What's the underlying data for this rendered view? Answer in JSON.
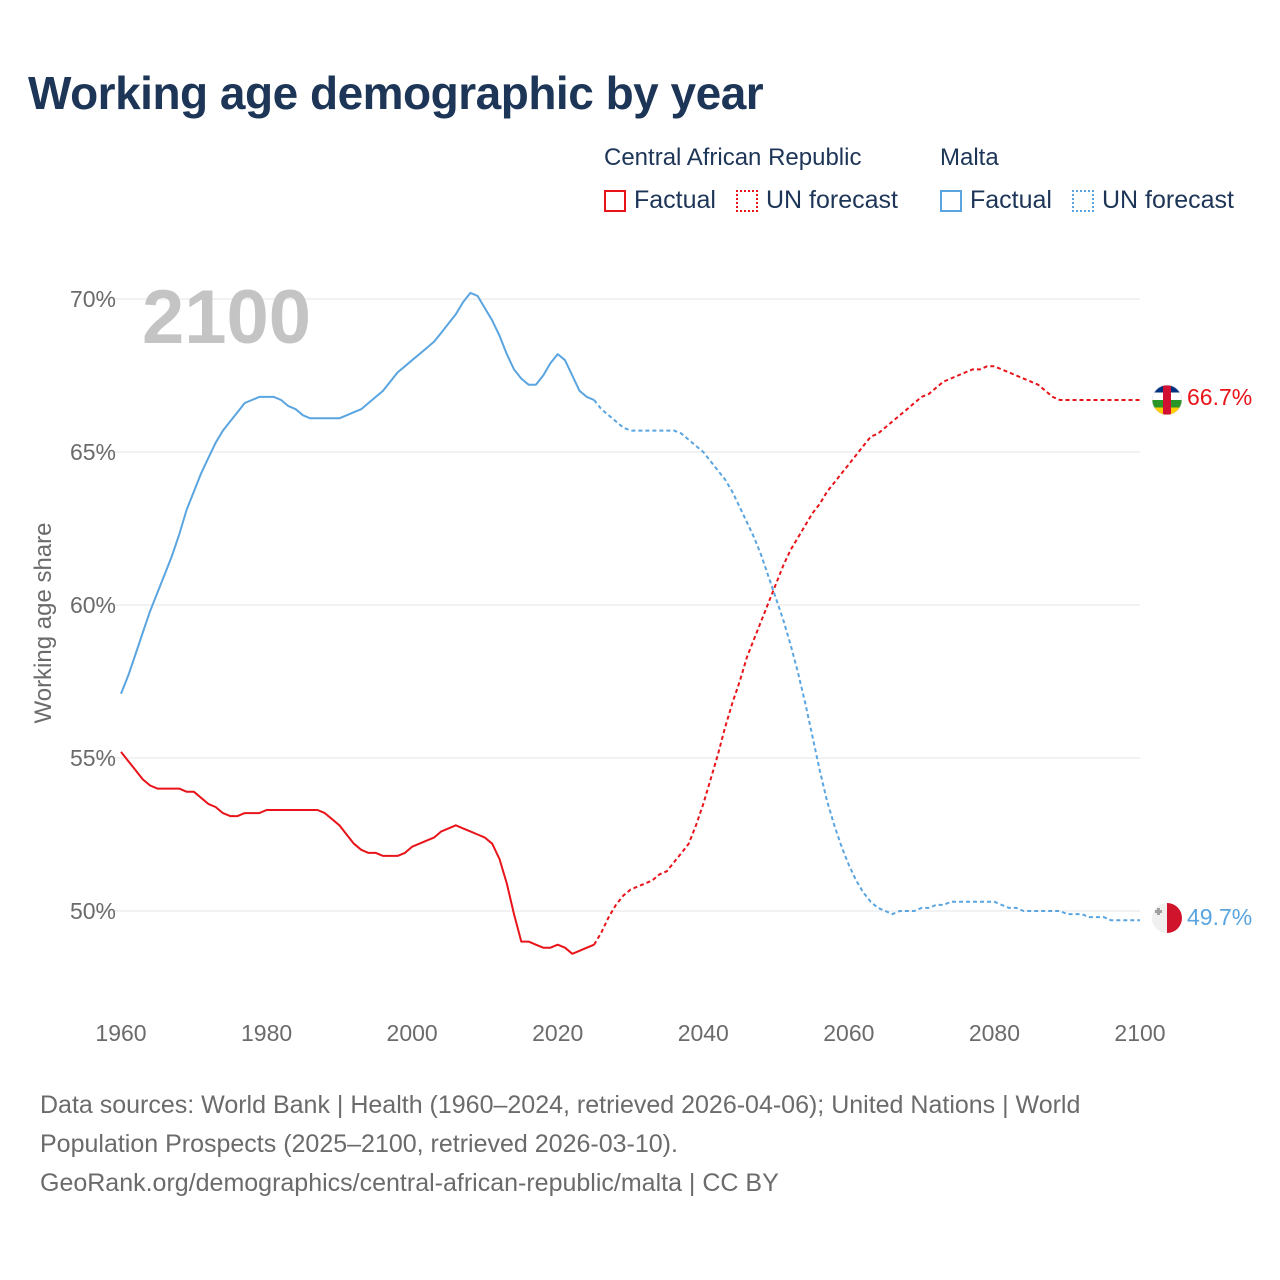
{
  "title": "Working age demographic by year",
  "year_label": "2100",
  "legend": [
    {
      "group": "Central African Republic",
      "factual": "Factual",
      "forecast": "UN forecast",
      "color": "#e8141a"
    },
    {
      "group": "Malta",
      "factual": "Factual",
      "forecast": "UN forecast",
      "color": "#5aa5e0"
    }
  ],
  "chart_data": {
    "type": "line",
    "title": "Working age demographic by year",
    "xlabel": "",
    "ylabel": "Working age share",
    "xlim": [
      1960,
      2100
    ],
    "ylim": [
      47,
      71
    ],
    "x_ticks": [
      "1960",
      "1980",
      "2000",
      "2020",
      "2040",
      "2060",
      "2080",
      "2100"
    ],
    "y_ticks": [
      "50%",
      "55%",
      "60%",
      "65%",
      "70%"
    ],
    "series": [
      {
        "name": "Central African Republic",
        "color": "#e8141a",
        "end_label": "66.7%",
        "factual": {
          "x": [
            1960,
            1961,
            1962,
            1963,
            1964,
            1965,
            1966,
            1967,
            1968,
            1969,
            1970,
            1971,
            1972,
            1973,
            1974,
            1975,
            1976,
            1977,
            1978,
            1979,
            1980,
            1981,
            1982,
            1983,
            1984,
            1985,
            1986,
            1987,
            1988,
            1989,
            1990,
            1991,
            1992,
            1993,
            1994,
            1995,
            1996,
            1997,
            1998,
            1999,
            2000,
            2001,
            2002,
            2003,
            2004,
            2005,
            2006,
            2007,
            2008,
            2009,
            2010,
            2011,
            2012,
            2013,
            2014,
            2015,
            2016,
            2017,
            2018,
            2019,
            2020,
            2021,
            2022,
            2023,
            2024,
            2025
          ],
          "y": [
            55.2,
            54.9,
            54.6,
            54.3,
            54.1,
            54.0,
            54.0,
            54.0,
            54.0,
            53.9,
            53.9,
            53.7,
            53.5,
            53.4,
            53.2,
            53.1,
            53.1,
            53.2,
            53.2,
            53.2,
            53.3,
            53.3,
            53.3,
            53.3,
            53.3,
            53.3,
            53.3,
            53.3,
            53.2,
            53.0,
            52.8,
            52.5,
            52.2,
            52.0,
            51.9,
            51.9,
            51.8,
            51.8,
            51.8,
            51.9,
            52.1,
            52.2,
            52.3,
            52.4,
            52.6,
            52.7,
            52.8,
            52.7,
            52.6,
            52.5,
            52.4,
            52.2,
            51.7,
            50.9,
            49.9,
            49.0,
            49.0,
            48.9,
            48.8,
            48.8,
            48.9,
            48.8,
            48.6,
            48.7,
            48.8,
            48.9
          ]
        },
        "forecast": {
          "x": [
            2025,
            2026,
            2027,
            2028,
            2029,
            2030,
            2031,
            2032,
            2033,
            2034,
            2035,
            2036,
            2037,
            2038,
            2039,
            2040,
            2041,
            2042,
            2043,
            2044,
            2045,
            2046,
            2047,
            2048,
            2049,
            2050,
            2051,
            2052,
            2053,
            2054,
            2055,
            2056,
            2057,
            2058,
            2059,
            2060,
            2061,
            2062,
            2063,
            2064,
            2065,
            2066,
            2067,
            2068,
            2069,
            2070,
            2071,
            2072,
            2073,
            2074,
            2075,
            2076,
            2077,
            2078,
            2079,
            2080,
            2081,
            2082,
            2083,
            2084,
            2085,
            2086,
            2087,
            2088,
            2089,
            2090,
            2091,
            2092,
            2093,
            2094,
            2095,
            2096,
            2097,
            2098,
            2099,
            2100
          ],
          "y": [
            48.9,
            49.3,
            49.8,
            50.2,
            50.5,
            50.7,
            50.8,
            50.9,
            51.0,
            51.2,
            51.3,
            51.6,
            51.9,
            52.2,
            52.8,
            53.5,
            54.3,
            55.1,
            56.0,
            56.8,
            57.5,
            58.3,
            58.9,
            59.5,
            60.1,
            60.7,
            61.3,
            61.8,
            62.2,
            62.6,
            63.0,
            63.3,
            63.7,
            64.0,
            64.3,
            64.6,
            64.9,
            65.2,
            65.5,
            65.6,
            65.8,
            66.0,
            66.2,
            66.4,
            66.6,
            66.8,
            66.9,
            67.1,
            67.3,
            67.4,
            67.5,
            67.6,
            67.7,
            67.7,
            67.8,
            67.8,
            67.7,
            67.6,
            67.5,
            67.4,
            67.3,
            67.2,
            67.0,
            66.8,
            66.7,
            66.7,
            66.7,
            66.7,
            66.7,
            66.7,
            66.7,
            66.7,
            66.7,
            66.7,
            66.7,
            66.7
          ]
        }
      },
      {
        "name": "Malta",
        "color": "#5aa5e0",
        "end_label": "49.7%",
        "factual": {
          "x": [
            1960,
            1961,
            1962,
            1963,
            1964,
            1965,
            1966,
            1967,
            1968,
            1969,
            1970,
            1971,
            1972,
            1973,
            1974,
            1975,
            1976,
            1977,
            1978,
            1979,
            1980,
            1981,
            1982,
            1983,
            1984,
            1985,
            1986,
            1987,
            1988,
            1989,
            1990,
            1991,
            1992,
            1993,
            1994,
            1995,
            1996,
            1997,
            1998,
            1999,
            2000,
            2001,
            2002,
            2003,
            2004,
            2005,
            2006,
            2007,
            2008,
            2009,
            2010,
            2011,
            2012,
            2013,
            2014,
            2015,
            2016,
            2017,
            2018,
            2019,
            2020,
            2021,
            2022,
            2023,
            2024,
            2025
          ],
          "y": [
            57.1,
            57.7,
            58.4,
            59.1,
            59.8,
            60.4,
            61.0,
            61.6,
            62.3,
            63.1,
            63.7,
            64.3,
            64.8,
            65.3,
            65.7,
            66.0,
            66.3,
            66.6,
            66.7,
            66.8,
            66.8,
            66.8,
            66.7,
            66.5,
            66.4,
            66.2,
            66.1,
            66.1,
            66.1,
            66.1,
            66.1,
            66.2,
            66.3,
            66.4,
            66.6,
            66.8,
            67.0,
            67.3,
            67.6,
            67.8,
            68.0,
            68.2,
            68.4,
            68.6,
            68.9,
            69.2,
            69.5,
            69.9,
            70.2,
            70.1,
            69.7,
            69.3,
            68.8,
            68.2,
            67.7,
            67.4,
            67.2,
            67.2,
            67.5,
            67.9,
            68.2,
            68.0,
            67.5,
            67.0,
            66.8,
            66.7
          ]
        },
        "forecast": {
          "x": [
            2025,
            2026,
            2027,
            2028,
            2029,
            2030,
            2031,
            2032,
            2033,
            2034,
            2035,
            2036,
            2037,
            2038,
            2039,
            2040,
            2041,
            2042,
            2043,
            2044,
            2045,
            2046,
            2047,
            2048,
            2049,
            2050,
            2051,
            2052,
            2053,
            2054,
            2055,
            2056,
            2057,
            2058,
            2059,
            2060,
            2061,
            2062,
            2063,
            2064,
            2065,
            2066,
            2067,
            2068,
            2069,
            2070,
            2071,
            2072,
            2073,
            2074,
            2075,
            2076,
            2077,
            2078,
            2079,
            2080,
            2081,
            2082,
            2083,
            2084,
            2085,
            2086,
            2087,
            2088,
            2089,
            2090,
            2091,
            2092,
            2093,
            2094,
            2095,
            2096,
            2097,
            2098,
            2099,
            2100
          ],
          "y": [
            66.7,
            66.4,
            66.2,
            66.0,
            65.8,
            65.7,
            65.7,
            65.7,
            65.7,
            65.7,
            65.7,
            65.7,
            65.6,
            65.4,
            65.2,
            65.0,
            64.7,
            64.4,
            64.1,
            63.7,
            63.2,
            62.7,
            62.2,
            61.6,
            60.9,
            60.2,
            59.5,
            58.7,
            57.8,
            56.8,
            55.7,
            54.6,
            53.6,
            52.8,
            52.1,
            51.5,
            51.0,
            50.6,
            50.3,
            50.1,
            50.0,
            49.9,
            50.0,
            50.0,
            50.0,
            50.1,
            50.1,
            50.2,
            50.2,
            50.3,
            50.3,
            50.3,
            50.3,
            50.3,
            50.3,
            50.3,
            50.2,
            50.1,
            50.1,
            50.0,
            50.0,
            50.0,
            50.0,
            50.0,
            50.0,
            49.9,
            49.9,
            49.9,
            49.8,
            49.8,
            49.8,
            49.7,
            49.7,
            49.7,
            49.7,
            49.7
          ]
        }
      }
    ]
  },
  "footer": {
    "line1": "Data sources: World Bank | Health (1960–2024, retrieved 2026-04-06); United Nations | World",
    "line2": "Population Prospects (2025–2100, retrieved 2026-03-10).",
    "line3": "GeoRank.org/demographics/central-african-republic/malta | CC BY"
  }
}
